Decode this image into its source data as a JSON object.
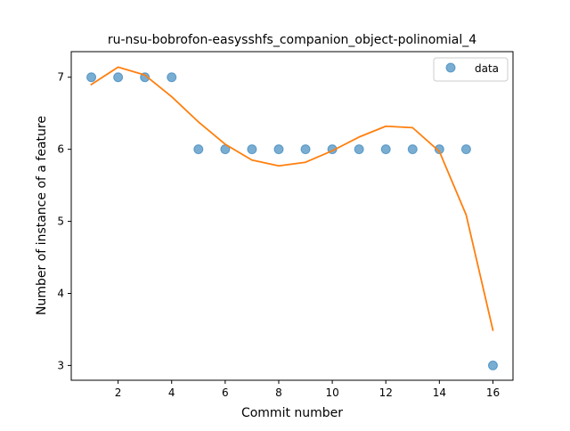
{
  "chart_data": {
    "type": "scatter",
    "title": "ru-nsu-bobrofon-easysshfs_companion_object-polinomial_4",
    "xlabel": "Commit number",
    "ylabel": "Number of instance of a feature",
    "xlim": [
      0.25,
      16.75
    ],
    "ylim": [
      2.795,
      7.355
    ],
    "xticks": [
      2,
      4,
      6,
      8,
      10,
      12,
      14,
      16
    ],
    "yticks": [
      3,
      4,
      5,
      6,
      7
    ],
    "grid": false,
    "legend_position": "top-right",
    "series": [
      {
        "name": "data",
        "kind": "scatter",
        "color": "#1f77b4",
        "x": [
          1,
          2,
          3,
          4,
          5,
          6,
          7,
          8,
          9,
          10,
          11,
          12,
          13,
          14,
          15,
          16
        ],
        "y": [
          7,
          7,
          7,
          7,
          6,
          6,
          6,
          6,
          6,
          6,
          6,
          6,
          6,
          6,
          6,
          3
        ]
      },
      {
        "kind": "line",
        "color": "#ff7f0e",
        "x": [
          1,
          2,
          3,
          4,
          5,
          6,
          7,
          8,
          9,
          10,
          11,
          12,
          13,
          14,
          15,
          16
        ],
        "y": [
          6.9,
          7.14,
          7.03,
          6.73,
          6.38,
          6.07,
          5.85,
          5.77,
          5.82,
          5.98,
          6.17,
          6.32,
          6.3,
          5.97,
          5.09,
          3.49
        ]
      }
    ]
  }
}
